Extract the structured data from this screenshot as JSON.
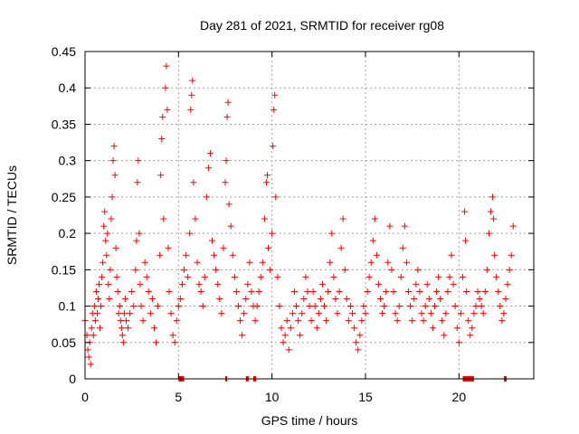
{
  "chart_data": {
    "type": "scatter",
    "title": "Day 281 of 2021, SRMTID for receiver rg08",
    "xlabel": "GPS time / hours",
    "ylabel": "SRMTID / TECUs",
    "xlim": [
      0,
      24
    ],
    "ylim": [
      0,
      0.45
    ],
    "xticks": [
      0,
      5,
      10,
      15,
      20
    ],
    "xtick_labels": [
      "0",
      "5",
      "10",
      "15",
      "20"
    ],
    "yticks": [
      0,
      0.05,
      0.1,
      0.15,
      0.2,
      0.25,
      0.3,
      0.35,
      0.4,
      0.45
    ],
    "ytick_labels": [
      "0",
      "0.05",
      "0.1",
      "0.15",
      "0.2",
      "0.25",
      "0.3",
      "0.35",
      "0.4",
      "0.45"
    ],
    "grid": true,
    "marker": "+",
    "marker_color": "#ff0000",
    "series": [
      {
        "name": "SRMTID",
        "points": [
          [
            0.0,
            0.08
          ],
          [
            0.1,
            0.06
          ],
          [
            0.15,
            0.04
          ],
          [
            0.2,
            0.03
          ],
          [
            0.25,
            0.05
          ],
          [
            0.3,
            0.02
          ],
          [
            0.35,
            0.07
          ],
          [
            0.4,
            0.09
          ],
          [
            0.45,
            0.06
          ],
          [
            0.5,
            0.1
          ],
          [
            0.55,
            0.08
          ],
          [
            0.6,
            0.12
          ],
          [
            0.65,
            0.09
          ],
          [
            0.7,
            0.11
          ],
          [
            0.75,
            0.13
          ],
          [
            0.8,
            0.07
          ],
          [
            0.85,
            0.1
          ],
          [
            0.9,
            0.14
          ],
          [
            0.95,
            0.16
          ],
          [
            1.0,
            0.21
          ],
          [
            1.05,
            0.23
          ],
          [
            1.1,
            0.19
          ],
          [
            1.15,
            0.17
          ],
          [
            1.2,
            0.2
          ],
          [
            1.25,
            0.13
          ],
          [
            1.3,
            0.11
          ],
          [
            1.35,
            0.15
          ],
          [
            1.4,
            0.22
          ],
          [
            1.45,
            0.25
          ],
          [
            1.5,
            0.3
          ],
          [
            1.55,
            0.32
          ],
          [
            1.6,
            0.28
          ],
          [
            1.65,
            0.18
          ],
          [
            1.7,
            0.14
          ],
          [
            1.75,
            0.12
          ],
          [
            1.8,
            0.09
          ],
          [
            1.85,
            0.1
          ],
          [
            1.9,
            0.08
          ],
          [
            1.95,
            0.07
          ],
          [
            2.0,
            0.06
          ],
          [
            2.05,
            0.05
          ],
          [
            2.1,
            0.09
          ],
          [
            2.15,
            0.11
          ],
          [
            2.2,
            0.08
          ],
          [
            2.3,
            0.07
          ],
          [
            2.4,
            0.09
          ],
          [
            2.5,
            0.12
          ],
          [
            2.6,
            0.1
          ],
          [
            2.7,
            0.15
          ],
          [
            2.75,
            0.19
          ],
          [
            2.8,
            0.27
          ],
          [
            2.85,
            0.3
          ],
          [
            2.9,
            0.2
          ],
          [
            2.95,
            0.13
          ],
          [
            3.0,
            0.1
          ],
          [
            3.1,
            0.08
          ],
          [
            3.2,
            0.16
          ],
          [
            3.3,
            0.14
          ],
          [
            3.4,
            0.12
          ],
          [
            3.5,
            0.09
          ],
          [
            3.6,
            0.11
          ],
          [
            3.7,
            0.07
          ],
          [
            3.8,
            0.05
          ],
          [
            3.9,
            0.1
          ],
          [
            4.0,
            0.17
          ],
          [
            4.05,
            0.28
          ],
          [
            4.1,
            0.33
          ],
          [
            4.15,
            0.36
          ],
          [
            4.2,
            0.22
          ],
          [
            4.3,
            0.4
          ],
          [
            4.35,
            0.43
          ],
          [
            4.4,
            0.37
          ],
          [
            4.45,
            0.18
          ],
          [
            4.5,
            0.12
          ],
          [
            4.6,
            0.09
          ],
          [
            4.7,
            0.06
          ],
          [
            4.8,
            0.05
          ],
          [
            4.9,
            0.08
          ],
          [
            5.0,
            0.1
          ],
          [
            5.1,
            0.11
          ],
          [
            5.2,
            0.13
          ],
          [
            5.3,
            0.15
          ],
          [
            5.4,
            0.17
          ],
          [
            5.5,
            0.14
          ],
          [
            5.6,
            0.2
          ],
          [
            5.65,
            0.37
          ],
          [
            5.7,
            0.39
          ],
          [
            5.75,
            0.41
          ],
          [
            5.8,
            0.27
          ],
          [
            5.9,
            0.22
          ],
          [
            6.0,
            0.16
          ],
          [
            6.1,
            0.13
          ],
          [
            6.2,
            0.12
          ],
          [
            6.3,
            0.1
          ],
          [
            6.4,
            0.14
          ],
          [
            6.5,
            0.25
          ],
          [
            6.6,
            0.29
          ],
          [
            6.7,
            0.31
          ],
          [
            6.8,
            0.19
          ],
          [
            6.9,
            0.17
          ],
          [
            7.0,
            0.15
          ],
          [
            7.1,
            0.13
          ],
          [
            7.2,
            0.11
          ],
          [
            7.3,
            0.09
          ],
          [
            7.4,
            0.18
          ],
          [
            7.5,
            0.27
          ],
          [
            7.55,
            0.3
          ],
          [
            7.6,
            0.36
          ],
          [
            7.65,
            0.38
          ],
          [
            7.7,
            0.24
          ],
          [
            7.8,
            0.21
          ],
          [
            7.9,
            0.17
          ],
          [
            8.0,
            0.14
          ],
          [
            8.1,
            0.12
          ],
          [
            8.2,
            0.1
          ],
          [
            8.3,
            0.08
          ],
          [
            8.4,
            0.06
          ],
          [
            8.5,
            0.09
          ],
          [
            8.6,
            0.11
          ],
          [
            8.7,
            0.13
          ],
          [
            8.8,
            0.16
          ],
          [
            8.9,
            0.12
          ],
          [
            9.0,
            0.1
          ],
          [
            9.1,
            0.08
          ],
          [
            9.2,
            0.1
          ],
          [
            9.3,
            0.12
          ],
          [
            9.4,
            0.14
          ],
          [
            9.5,
            0.16
          ],
          [
            9.6,
            0.22
          ],
          [
            9.7,
            0.27
          ],
          [
            9.75,
            0.28
          ],
          [
            9.8,
            0.18
          ],
          [
            9.9,
            0.15
          ],
          [
            10.0,
            0.2
          ],
          [
            10.05,
            0.32
          ],
          [
            10.1,
            0.37
          ],
          [
            10.15,
            0.39
          ],
          [
            10.2,
            0.25
          ],
          [
            10.3,
            0.14
          ],
          [
            10.4,
            0.1
          ],
          [
            10.5,
            0.07
          ],
          [
            10.6,
            0.05
          ],
          [
            10.7,
            0.06
          ],
          [
            10.8,
            0.08
          ],
          [
            10.9,
            0.04
          ],
          [
            11.0,
            0.07
          ],
          [
            11.1,
            0.09
          ],
          [
            11.2,
            0.12
          ],
          [
            11.3,
            0.1
          ],
          [
            11.4,
            0.08
          ],
          [
            11.5,
            0.06
          ],
          [
            11.6,
            0.09
          ],
          [
            11.7,
            0.11
          ],
          [
            11.8,
            0.14
          ],
          [
            11.9,
            0.12
          ],
          [
            12.0,
            0.1
          ],
          [
            12.1,
            0.08
          ],
          [
            12.2,
            0.12
          ],
          [
            12.3,
            0.1
          ],
          [
            12.4,
            0.07
          ],
          [
            12.5,
            0.09
          ],
          [
            12.6,
            0.11
          ],
          [
            12.7,
            0.13
          ],
          [
            12.8,
            0.1
          ],
          [
            12.9,
            0.08
          ],
          [
            13.0,
            0.12
          ],
          [
            13.1,
            0.16
          ],
          [
            13.2,
            0.2
          ],
          [
            13.3,
            0.14
          ],
          [
            13.4,
            0.11
          ],
          [
            13.5,
            0.09
          ],
          [
            13.6,
            0.12
          ],
          [
            13.7,
            0.18
          ],
          [
            13.8,
            0.22
          ],
          [
            13.9,
            0.15
          ],
          [
            14.0,
            0.11
          ],
          [
            14.1,
            0.08
          ],
          [
            14.2,
            0.1
          ],
          [
            14.3,
            0.09
          ],
          [
            14.4,
            0.07
          ],
          [
            14.5,
            0.05
          ],
          [
            14.6,
            0.04
          ],
          [
            14.7,
            0.06
          ],
          [
            14.8,
            0.08
          ],
          [
            14.9,
            0.1
          ],
          [
            15.0,
            0.09
          ],
          [
            15.1,
            0.12
          ],
          [
            15.2,
            0.14
          ],
          [
            15.3,
            0.16
          ],
          [
            15.4,
            0.19
          ],
          [
            15.5,
            0.22
          ],
          [
            15.6,
            0.17
          ],
          [
            15.7,
            0.13
          ],
          [
            15.8,
            0.11
          ],
          [
            15.9,
            0.09
          ],
          [
            16.0,
            0.1
          ],
          [
            16.1,
            0.12
          ],
          [
            16.2,
            0.16
          ],
          [
            16.3,
            0.21
          ],
          [
            16.4,
            0.15
          ],
          [
            16.5,
            0.12
          ],
          [
            16.6,
            0.09
          ],
          [
            16.7,
            0.08
          ],
          [
            16.8,
            0.1
          ],
          [
            16.9,
            0.14
          ],
          [
            17.0,
            0.18
          ],
          [
            17.1,
            0.21
          ],
          [
            17.2,
            0.16
          ],
          [
            17.3,
            0.12
          ],
          [
            17.4,
            0.1
          ],
          [
            17.5,
            0.08
          ],
          [
            17.6,
            0.11
          ],
          [
            17.7,
            0.13
          ],
          [
            17.8,
            0.15
          ],
          [
            17.9,
            0.12
          ],
          [
            18.0,
            0.09
          ],
          [
            18.1,
            0.08
          ],
          [
            18.2,
            0.1
          ],
          [
            18.3,
            0.13
          ],
          [
            18.4,
            0.11
          ],
          [
            18.5,
            0.09
          ],
          [
            18.6,
            0.07
          ],
          [
            18.7,
            0.1
          ],
          [
            18.8,
            0.12
          ],
          [
            18.9,
            0.14
          ],
          [
            19.0,
            0.11
          ],
          [
            19.1,
            0.08
          ],
          [
            19.2,
            0.06
          ],
          [
            19.3,
            0.09
          ],
          [
            19.4,
            0.12
          ],
          [
            19.5,
            0.14
          ],
          [
            19.6,
            0.17
          ],
          [
            19.7,
            0.13
          ],
          [
            19.8,
            0.1
          ],
          [
            19.9,
            0.07
          ],
          [
            20.0,
            0.05
          ],
          [
            20.1,
            0.09
          ],
          [
            20.2,
            0.14
          ],
          [
            20.3,
            0.23
          ],
          [
            20.35,
            0.19
          ],
          [
            20.4,
            0.12
          ],
          [
            20.5,
            0.08
          ],
          [
            20.6,
            0.06
          ],
          [
            20.7,
            0.07
          ],
          [
            20.8,
            0.09
          ],
          [
            20.9,
            0.1
          ],
          [
            21.0,
            0.12
          ],
          [
            21.1,
            0.11
          ],
          [
            21.2,
            0.1
          ],
          [
            21.3,
            0.09
          ],
          [
            21.4,
            0.12
          ],
          [
            21.5,
            0.15
          ],
          [
            21.6,
            0.2
          ],
          [
            21.7,
            0.23
          ],
          [
            21.8,
            0.25
          ],
          [
            21.85,
            0.22
          ],
          [
            21.9,
            0.17
          ],
          [
            22.0,
            0.14
          ],
          [
            22.1,
            0.12
          ],
          [
            22.2,
            0.1
          ],
          [
            22.3,
            0.08
          ],
          [
            22.4,
            0.09
          ],
          [
            22.5,
            0.11
          ],
          [
            22.6,
            0.13
          ],
          [
            22.7,
            0.15
          ],
          [
            22.8,
            0.17
          ],
          [
            22.9,
            0.21
          ]
        ]
      }
    ],
    "gap_markers": [
      [
        5.0,
        5.3
      ],
      [
        7.5,
        7.6
      ],
      [
        8.6,
        8.75
      ],
      [
        9.0,
        9.15
      ],
      [
        20.2,
        20.8
      ],
      [
        22.4,
        22.55
      ]
    ]
  }
}
